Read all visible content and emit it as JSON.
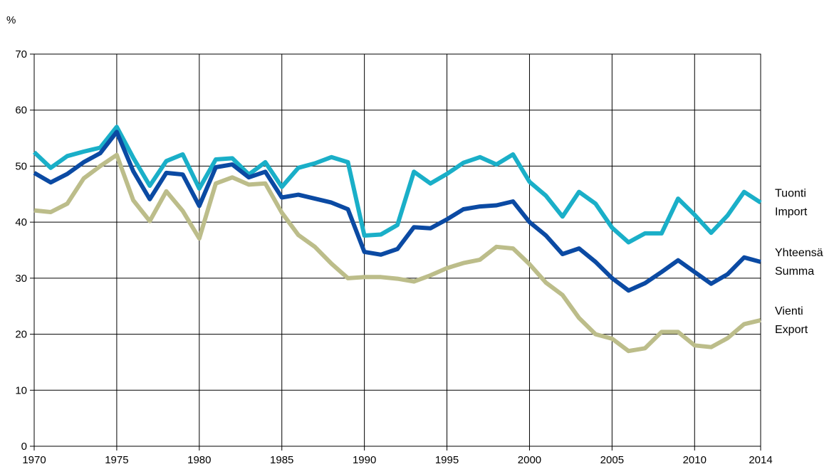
{
  "chart_data": {
    "type": "line",
    "title": "",
    "unit_label": "%",
    "xlabel": "",
    "ylabel": "",
    "xlim": [
      1970,
      2014
    ],
    "ylim": [
      0,
      70
    ],
    "x_ticks": [
      1970,
      1975,
      1980,
      1985,
      1990,
      1995,
      2000,
      2005,
      2010,
      2014
    ],
    "y_ticks": [
      0,
      10,
      20,
      30,
      40,
      50,
      60,
      70
    ],
    "grid": true,
    "legend_position": "right, inline at line ends",
    "x": [
      1970,
      1971,
      1972,
      1973,
      1974,
      1975,
      1976,
      1977,
      1978,
      1979,
      1980,
      1981,
      1982,
      1983,
      1984,
      1985,
      1986,
      1987,
      1988,
      1989,
      1990,
      1991,
      1992,
      1993,
      1994,
      1995,
      1996,
      1997,
      1998,
      1999,
      2000,
      2001,
      2002,
      2003,
      2004,
      2005,
      2006,
      2007,
      2008,
      2009,
      2010,
      2011,
      2012,
      2013,
      2014
    ],
    "series": [
      {
        "name": "Tuonti Import",
        "label_lines": [
          "Tuonti",
          "Import"
        ],
        "color": "#1aafc8",
        "values": [
          52.5,
          49.7,
          51.8,
          52.6,
          53.3,
          57.0,
          51.5,
          46.5,
          50.9,
          52.1,
          46.0,
          51.2,
          51.4,
          48.5,
          50.7,
          46.3,
          49.7,
          50.5,
          51.6,
          50.7,
          37.6,
          37.8,
          39.5,
          49.0,
          46.9,
          48.6,
          50.6,
          51.6,
          50.3,
          52.1,
          47.2,
          44.7,
          41.0,
          45.4,
          43.3,
          39.0,
          36.4,
          38.0,
          38.0,
          44.2,
          41.3,
          38.1,
          41.2,
          45.4,
          43.5
        ]
      },
      {
        "name": "Yhteensä Summa",
        "label_lines": [
          "Yhteensä",
          "Summa"
        ],
        "color": "#0b4aa3",
        "values": [
          48.8,
          47.1,
          48.6,
          50.7,
          52.3,
          56.1,
          49.1,
          44.1,
          48.8,
          48.5,
          42.9,
          49.8,
          50.3,
          48.0,
          49.0,
          44.4,
          44.9,
          44.2,
          43.5,
          42.3,
          34.7,
          34.2,
          35.2,
          39.1,
          38.9,
          40.5,
          42.3,
          42.8,
          43.0,
          43.7,
          40.0,
          37.6,
          34.3,
          35.3,
          32.9,
          30.0,
          27.8,
          29.1,
          31.1,
          33.2,
          31.1,
          29.0,
          30.7,
          33.7,
          32.9
        ]
      },
      {
        "name": "Vienti Export",
        "label_lines": [
          "Vienti",
          "Export"
        ],
        "color": "#bcbd8a",
        "values": [
          42.1,
          41.8,
          43.3,
          47.8,
          50.0,
          52.0,
          43.9,
          40.2,
          45.5,
          42.0,
          37.1,
          46.9,
          48.0,
          46.7,
          46.9,
          41.7,
          37.7,
          35.6,
          32.6,
          30.0,
          30.2,
          30.2,
          29.9,
          29.4,
          30.5,
          31.8,
          32.7,
          33.3,
          35.6,
          35.3,
          32.5,
          29.2,
          27.0,
          22.9,
          20.0,
          19.2,
          17.0,
          17.5,
          20.4,
          20.4,
          18.0,
          17.7,
          19.3,
          21.8,
          22.5
        ]
      }
    ]
  }
}
